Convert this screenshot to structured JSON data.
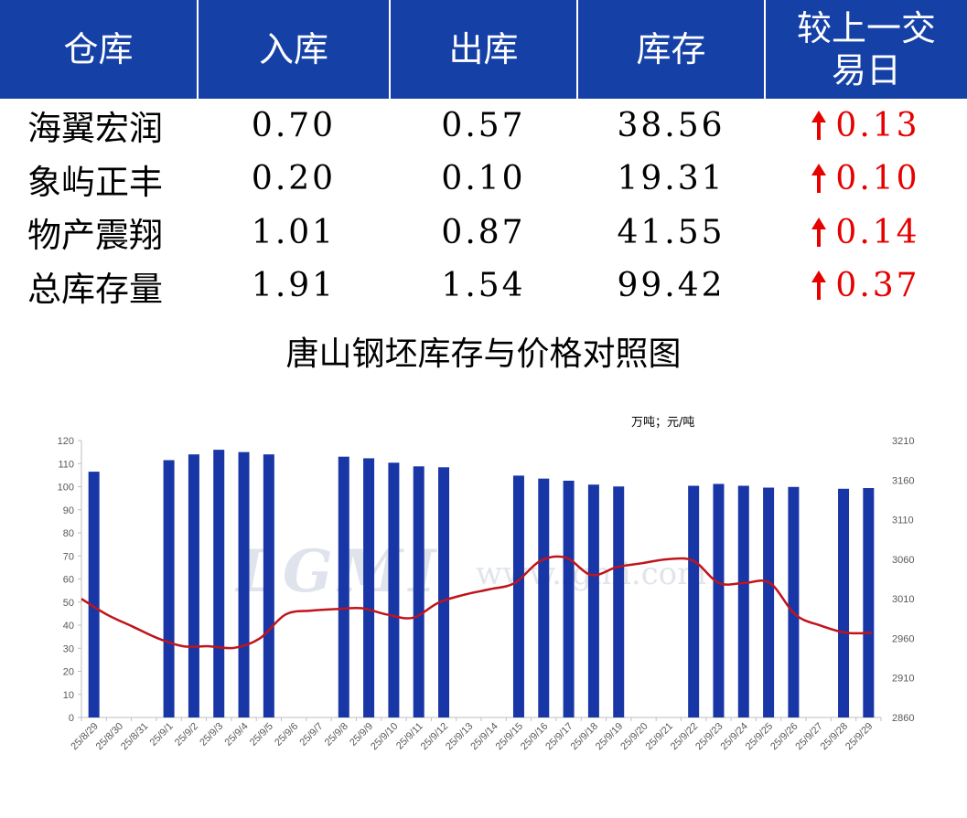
{
  "table": {
    "headers": [
      "仓库",
      "入库",
      "出库",
      "库存",
      "较上一交易日"
    ],
    "rows": [
      {
        "name": "海翼宏润",
        "inbound": "0.70",
        "outbound": "0.57",
        "stock": "38.56",
        "change": "0.13"
      },
      {
        "name": "象屿正丰",
        "inbound": "0.20",
        "outbound": "0.10",
        "stock": "19.31",
        "change": "0.10"
      },
      {
        "name": "物产震翔",
        "inbound": "1.01",
        "outbound": "0.87",
        "stock": "41.55",
        "change": "0.14"
      },
      {
        "name": "总库存量",
        "inbound": "1.91",
        "outbound": "1.54",
        "stock": "99.42",
        "change": "0.37"
      }
    ],
    "change_direction_icon": "up-arrow-icon",
    "colors": {
      "header_bg": "#1541a7",
      "header_text": "#ffffff",
      "change_text": "#e60000"
    }
  },
  "watermark": {
    "logo": "LGMI",
    "url": "www.lgmi.com"
  },
  "chart_data": {
    "type": "bar",
    "title": "唐山钢坯库存与价格对照图",
    "unit_note": "万吨；元/吨",
    "categories": [
      "25/8/29",
      "25/8/30",
      "25/8/31",
      "25/9/1",
      "25/9/2",
      "25/9/3",
      "25/9/4",
      "25/9/5",
      "25/9/6",
      "25/9/7",
      "25/9/8",
      "25/9/9",
      "25/9/10",
      "25/9/11",
      "25/9/12",
      "25/9/13",
      "25/9/14",
      "25/9/15",
      "25/9/16",
      "25/9/17",
      "25/9/18",
      "25/9/19",
      "25/9/20",
      "25/9/21",
      "25/9/22",
      "25/9/23",
      "25/9/24",
      "25/9/25",
      "25/9/26",
      "25/9/27",
      "25/9/28",
      "25/9/29"
    ],
    "series": [
      {
        "type": "bar",
        "axis": "left",
        "color": "#1936a6",
        "values": [
          106.5,
          null,
          null,
          111.5,
          114,
          116,
          115,
          114,
          null,
          null,
          113,
          112.3,
          110.4,
          108.8,
          108.4,
          null,
          null,
          104.8,
          103.5,
          102.6,
          100.9,
          100.1,
          null,
          null,
          100.4,
          101.2,
          100.4,
          99.6,
          99.9,
          null,
          99.1,
          99.4
        ]
      },
      {
        "type": "line",
        "axis": "right",
        "color": "#c0141b",
        "values": [
          3010,
          2990,
          2975,
          2960,
          2950,
          2950,
          2948,
          2960,
          2990,
          2995,
          2997,
          2998,
          2990,
          2986,
          3005,
          3015,
          3022,
          3030,
          3058,
          3062,
          3040,
          3050,
          3055,
          3060,
          3058,
          3030,
          3030,
          3030,
          2990,
          2976,
          2967,
          2967
        ]
      }
    ],
    "y_left": {
      "min": 0,
      "max": 120,
      "ticks": [
        0,
        10,
        20,
        30,
        40,
        50,
        60,
        70,
        80,
        90,
        100,
        110,
        120
      ]
    },
    "y_right": {
      "min": 2860,
      "max": 3210,
      "ticks": [
        2860,
        2910,
        2960,
        3010,
        3060,
        3110,
        3160,
        3210
      ]
    },
    "grid": false,
    "legend": "none"
  }
}
